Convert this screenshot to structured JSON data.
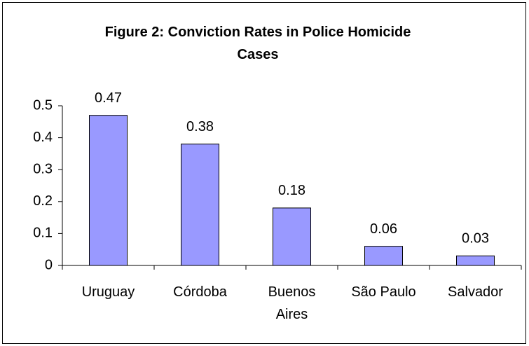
{
  "chart_data": {
    "type": "bar",
    "title": "Figure 2: Conviction Rates in Police Homicide Cases",
    "categories": [
      "Uruguay",
      "Córdoba",
      "Buenos Aires",
      "São Paulo",
      "Salvador"
    ],
    "values": [
      0.47,
      0.38,
      0.18,
      0.06,
      0.03
    ],
    "color": "#9999ff",
    "ylim": [
      0,
      0.5
    ],
    "yticks": [
      0,
      0.1,
      0.2,
      0.3,
      0.4,
      0.5
    ],
    "grid": false
  }
}
